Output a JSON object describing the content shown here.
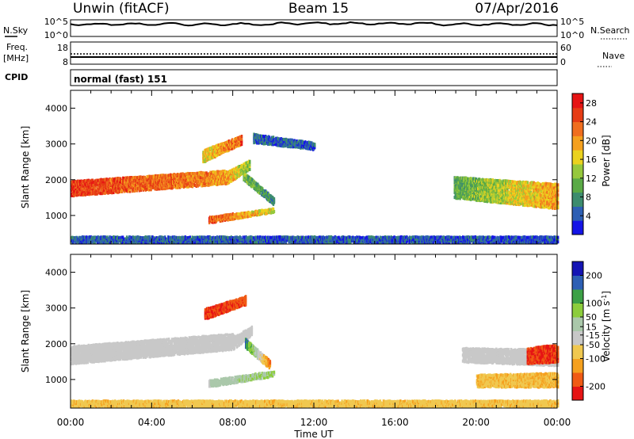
{
  "header": {
    "station": "Unwin (fitACF)",
    "beam": "Beam 15",
    "date": "07/Apr/2016"
  },
  "side_labels": {
    "nsky": "N.Sky",
    "freq_line1": "Freq.",
    "freq_line2": "[MHz]",
    "cpid": "CPID",
    "nsearch": "N.Search",
    "nave": "Nave"
  },
  "noise_panel": {
    "left_ticks": [
      "10^5",
      "10^0"
    ],
    "right_ticks": [
      "10^5",
      "10^0"
    ]
  },
  "freq_panel": {
    "left_ticks": [
      "18",
      "8"
    ],
    "right_ticks": [
      "60",
      "0"
    ]
  },
  "cpid_panel": {
    "text": "normal (fast) 151"
  },
  "colors": {
    "power": [
      "#1414e6",
      "#2d5fb4",
      "#3c8c6e",
      "#5aaa46",
      "#96c83c",
      "#ebd21e",
      "#f5a01e",
      "#f06e1e",
      "#e63c14",
      "#e61414"
    ],
    "velocity": [
      "#e61414",
      "#f05a14",
      "#f5a01e",
      "#f0c850",
      "#c8c8c8",
      "#aac8aa",
      "#8ccd3c",
      "#3ca046",
      "#2d5fb4",
      "#1414b4"
    ],
    "ground_scatter": "#c8c8c8"
  },
  "chart_data": [
    {
      "type": "heatmap",
      "title": "",
      "xlabel": "Time UT",
      "ylabel": "Slant Range [km]",
      "x_ticks": [
        "00:00",
        "04:00",
        "08:00",
        "12:00",
        "16:00",
        "20:00",
        "00:00"
      ],
      "y_ticks": [
        1000,
        2000,
        3000,
        4000
      ],
      "xlim": [
        0,
        24
      ],
      "ylim": [
        200,
        4500
      ],
      "colorbar": {
        "label": "Power [dB]",
        "ticks": [
          4,
          8,
          12,
          16,
          20,
          24,
          28
        ],
        "range": [
          0,
          30
        ]
      },
      "regions": [
        {
          "name": "main band",
          "t": [
            0,
            7.7
          ],
          "r_start": [
            1560,
            1900
          ],
          "width": [
            420,
            380
          ],
          "value": [
            26,
            20
          ]
        },
        {
          "name": "rising arc",
          "t": [
            7.7,
            8.8
          ],
          "r_start": [
            1900,
            2300
          ],
          "width": [
            340,
            260
          ],
          "value": [
            20,
            12
          ]
        },
        {
          "name": "upper arc",
          "t": [
            6.5,
            8.4
          ],
          "r_start": [
            2500,
            3000
          ],
          "width": [
            350,
            250
          ],
          "value": [
            16,
            24
          ]
        },
        {
          "name": "lower arc",
          "t": [
            6.8,
            10.0
          ],
          "r_start": [
            800,
            1100
          ],
          "width": [
            180,
            120
          ],
          "value": [
            24,
            16
          ]
        },
        {
          "name": "descending tail",
          "t": [
            8.5,
            10.0
          ],
          "r_start": [
            2000,
            1300
          ],
          "width": [
            250,
            200
          ],
          "value": [
            12,
            6
          ]
        },
        {
          "name": "mid-range patch",
          "t": [
            9.0,
            12.0
          ],
          "r_start": [
            3050,
            2850
          ],
          "width": [
            250,
            200
          ],
          "value": [
            5,
            5
          ]
        },
        {
          "name": "near-range ground",
          "t": [
            0,
            24
          ],
          "r_start": [
            250,
            250
          ],
          "width": [
            180,
            180
          ],
          "value": [
            5,
            4
          ]
        },
        {
          "name": "evening band",
          "t": [
            18.9,
            24
          ],
          "r_start": [
            1500,
            1200
          ],
          "width": [
            600,
            700
          ],
          "value": [
            10,
            20
          ]
        }
      ]
    },
    {
      "type": "heatmap",
      "title": "",
      "xlabel": "Time UT",
      "ylabel": "Slant Range [km]",
      "x_ticks": [
        "00:00",
        "04:00",
        "08:00",
        "12:00",
        "16:00",
        "20:00",
        "00:00"
      ],
      "y_ticks": [
        1000,
        2000,
        3000,
        4000
      ],
      "xlim": [
        0,
        24
      ],
      "ylim": [
        200,
        4500
      ],
      "colorbar": {
        "label": "Velocity [m s^-1]",
        "ticks": [
          -200,
          -100,
          -50,
          -15,
          15,
          50,
          100,
          200
        ],
        "range": [
          -250,
          250
        ]
      },
      "regions": [
        {
          "name": "ground scatter band",
          "t": [
            0,
            8.0
          ],
          "r_start": [
            1450,
            1850
          ],
          "width": [
            500,
            450
          ],
          "value": [
            0,
            0
          ]
        },
        {
          "name": "rising arc",
          "t": [
            8.0,
            8.9
          ],
          "r_start": [
            1850,
            2250
          ],
          "width": [
            350,
            250
          ],
          "value": [
            0,
            0
          ]
        },
        {
          "name": "upper red patch",
          "t": [
            6.6,
            8.6
          ],
          "r_start": [
            2700,
            3100
          ],
          "width": [
            300,
            250
          ],
          "value": [
            -200,
            -180
          ]
        },
        {
          "name": "blue tail",
          "t": [
            8.6,
            9.8
          ],
          "r_start": [
            1900,
            1300
          ],
          "width": [
            250,
            250
          ],
          "value": [
            150,
            -150
          ]
        },
        {
          "name": "lower arc",
          "t": [
            6.8,
            10.0
          ],
          "r_start": [
            800,
            1100
          ],
          "width": [
            200,
            150
          ],
          "value": [
            0,
            60
          ]
        },
        {
          "name": "near-range ground",
          "t": [
            0,
            24
          ],
          "r_start": [
            250,
            250
          ],
          "width": [
            180,
            180
          ],
          "value": [
            -80,
            -80
          ]
        },
        {
          "name": "evening grey band",
          "t": [
            19.3,
            24
          ],
          "r_start": [
            1500,
            1400
          ],
          "width": [
            400,
            450
          ],
          "value": [
            0,
            0
          ]
        },
        {
          "name": "evening orange",
          "t": [
            20.0,
            24
          ],
          "r_start": [
            800,
            800
          ],
          "width": [
            350,
            400
          ],
          "value": [
            -80,
            -100
          ]
        },
        {
          "name": "evening red",
          "t": [
            22.5,
            24
          ],
          "r_start": [
            1450,
            1500
          ],
          "width": [
            450,
            500
          ],
          "value": [
            -200,
            -200
          ]
        }
      ]
    }
  ]
}
